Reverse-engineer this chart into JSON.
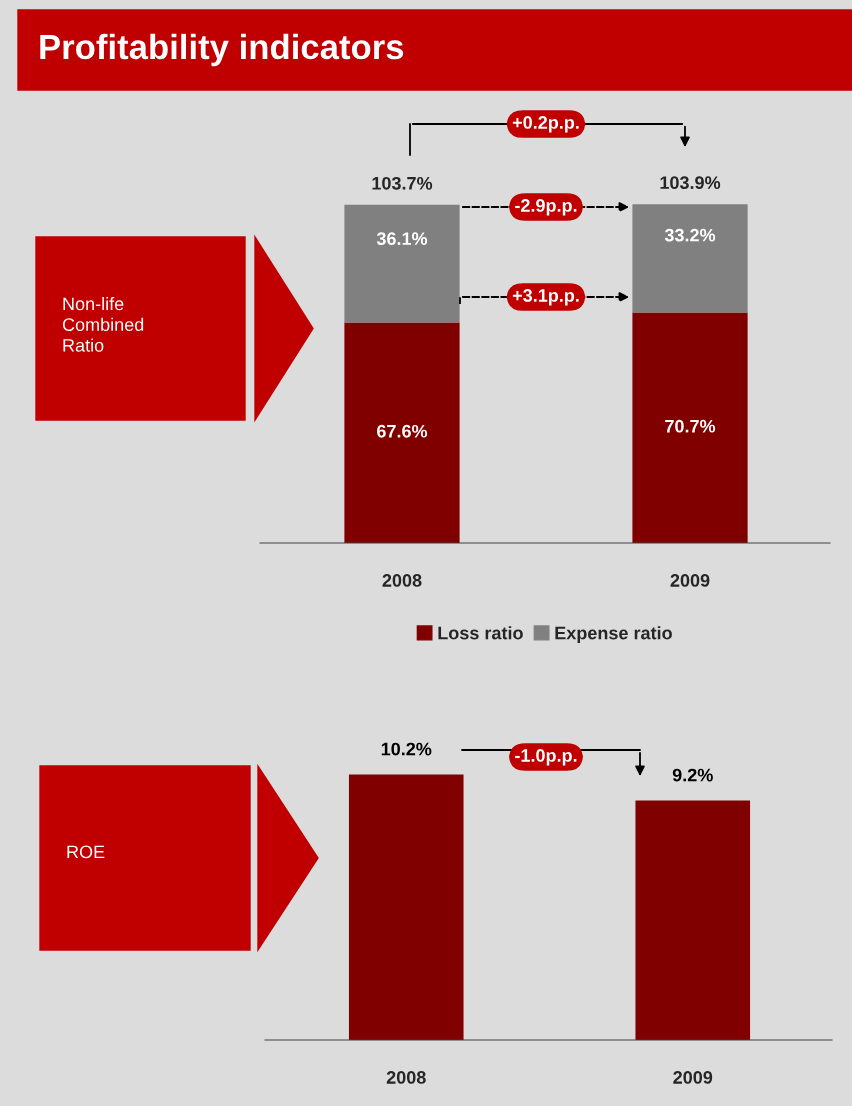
{
  "chart_data": [
    {
      "type": "bar",
      "title": "Profitability indicators",
      "ylabel": "Non-life Combined Ratio",
      "categories": [
        "2008",
        "2009"
      ],
      "stacked": true,
      "legend": "bottom",
      "series": [
        {
          "name": "Loss ratio",
          "color": "#800000",
          "values": [
            67.6,
            70.7
          ],
          "value_labels": [
            "67.6%",
            "70.7%"
          ]
        },
        {
          "name": "Expense ratio",
          "color": "#808080",
          "values": [
            36.1,
            33.2
          ],
          "value_labels": [
            "36.1%",
            "33.2%"
          ]
        }
      ],
      "totals": [
        "103.7%",
        "103.9%"
      ],
      "annotations": [
        "+0.2p.p.",
        "-2.9p.p.",
        "+3.1p.p."
      ]
    },
    {
      "type": "bar",
      "ylabel": "ROE",
      "categories": [
        "2008",
        "2009"
      ],
      "color": "#800000",
      "values": [
        10.2,
        9.2
      ],
      "value_labels": [
        "10.2%",
        "9.2%"
      ],
      "annotations": [
        "-1.0p.p."
      ]
    }
  ]
}
